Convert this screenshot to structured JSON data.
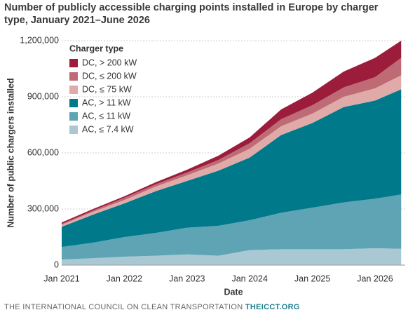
{
  "chart_data": {
    "type": "area",
    "title": "Number of publicly accessible charging points installed in Europe by charger type, January 2021–June 2026",
    "x_label": "Date",
    "y_label": "Number of public chargers installed",
    "legend_title": "Charger type",
    "legend": "upper left",
    "stacked": true,
    "grid": true,
    "x": [
      "Jan 2021",
      "Jul 2021",
      "Jan 2022",
      "Jul 2022",
      "Jan 2023",
      "Jul 2023",
      "Jan 2024",
      "Jul 2024",
      "Jan 2025",
      "Jul 2025",
      "Jan 2026",
      "Jun 2026"
    ],
    "xticks": [
      "Jan 2021",
      "Jan 2022",
      "Jan 2023",
      "Jan 2024",
      "Jan 2025",
      "Jan 2026"
    ],
    "ylim": [
      0,
      1200000
    ],
    "yticks": [
      0,
      {
        "value": 300000,
        "label": "300,000"
      },
      {
        "value": 600000,
        "label": "600,000"
      },
      {
        "value": 900000,
        "label": "900,000"
      },
      {
        "value": 1200000,
        "label": "1,200,000"
      }
    ],
    "series": [
      {
        "name": "AC, ≤ 7.4 kW",
        "color": "#a9c8d4",
        "values": [
          30000,
          37000,
          45000,
          50000,
          57000,
          50000,
          80000,
          85000,
          85000,
          85000,
          90000,
          87000
        ]
      },
      {
        "name": "AC, ≤ 11 kW",
        "color": "#5fa4b4",
        "values": [
          67000,
          83000,
          105000,
          122000,
          143000,
          160000,
          160000,
          195000,
          222000,
          250000,
          265000,
          291000
        ]
      },
      {
        "name": "AC, > 11 kW",
        "color": "#007a8a",
        "values": [
          108000,
          150000,
          180000,
          223000,
          250000,
          295000,
          335000,
          415000,
          453000,
          510000,
          525000,
          562000
        ]
      },
      {
        "name": "DC, ≤ 75 kW",
        "color": "#e0aaa8",
        "values": [
          10000,
          15000,
          18000,
          25000,
          30000,
          38000,
          47000,
          47000,
          50000,
          55000,
          65000,
          75000
        ]
      },
      {
        "name": "DC, ≤ 200 kW",
        "color": "#bf6b76",
        "values": [
          5000,
          7000,
          12000,
          12000,
          15000,
          19000,
          30000,
          38000,
          45000,
          50000,
          60000,
          93000
        ]
      },
      {
        "name": "DC, > 200 kW",
        "color": "#9c1c3c",
        "values": [
          8000,
          8000,
          8000,
          11000,
          15000,
          23000,
          31000,
          52000,
          67000,
          85000,
          103000,
          92000
        ]
      }
    ]
  },
  "footer": {
    "org": "THE INTERNATIONAL COUNCIL ON CLEAN TRANSPORTATION",
    "site": "THEICCT.ORG"
  }
}
